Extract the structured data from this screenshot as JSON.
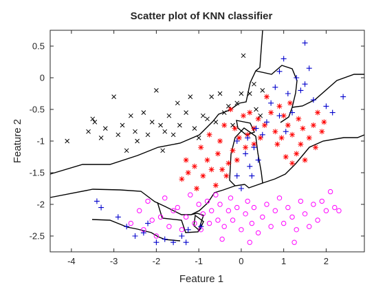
{
  "chart_data": {
    "type": "scatter",
    "title": "Scatter plot of KNN classifier",
    "xlabel": "Feature 1",
    "ylabel": "Feature 2",
    "xlim": [
      -4.5,
      2.9
    ],
    "ylim": [
      -2.75,
      0.75
    ],
    "x_ticks": [
      -4,
      -3,
      -2,
      -1,
      0,
      1,
      2
    ],
    "x_tick_labels": [
      "-4",
      "-3",
      "-2",
      "-1",
      "0",
      "1",
      "2"
    ],
    "y_ticks": [
      0.5,
      0,
      -0.5,
      -1,
      -1.5,
      -2,
      -2.5
    ],
    "y_tick_labels": [
      "0.5",
      "0",
      "-0.5",
      "-1",
      "-1.5",
      "-2",
      "-2.5"
    ],
    "grid": false,
    "legend": "none",
    "series": [
      {
        "marker": "x",
        "color": "#000000",
        "points": [
          [
            -4.1,
            -1.0
          ],
          [
            -3.6,
            -0.85
          ],
          [
            -3.5,
            -0.65
          ],
          [
            -3.45,
            -0.7
          ],
          [
            -3.3,
            -0.95
          ],
          [
            -3.2,
            -0.8
          ],
          [
            -3.0,
            -0.3
          ],
          [
            -2.9,
            -0.9
          ],
          [
            -2.8,
            -0.75
          ],
          [
            -2.7,
            -1.15
          ],
          [
            -2.6,
            -0.6
          ],
          [
            -2.5,
            -0.85
          ],
          [
            -2.45,
            -1.0
          ],
          [
            -2.3,
            -0.55
          ],
          [
            -2.2,
            -0.9
          ],
          [
            -2.1,
            -0.7
          ],
          [
            -2.0,
            -0.2
          ],
          [
            -1.9,
            -0.75
          ],
          [
            -1.85,
            -1.15
          ],
          [
            -1.8,
            -0.85
          ],
          [
            -1.7,
            -0.6
          ],
          [
            -1.6,
            -0.9
          ],
          [
            -1.5,
            -0.4
          ],
          [
            -1.45,
            -0.75
          ],
          [
            -1.3,
            -0.55
          ],
          [
            -1.2,
            -0.3
          ],
          [
            -1.1,
            -0.8
          ],
          [
            -1.0,
            -0.95
          ],
          [
            -0.9,
            -0.6
          ],
          [
            -0.8,
            -0.65
          ],
          [
            -0.7,
            -0.3
          ],
          [
            -0.6,
            -0.7
          ],
          [
            -0.5,
            -0.25
          ],
          [
            -0.4,
            -0.55
          ],
          [
            -0.3,
            -0.45
          ],
          [
            -0.2,
            -0.75
          ],
          [
            -0.1,
            -0.4
          ],
          [
            0.0,
            -0.25
          ],
          [
            0.05,
            0.35
          ],
          [
            0.2,
            -0.25
          ],
          [
            0.3,
            -0.1
          ],
          [
            0.35,
            -0.5
          ],
          [
            0.45,
            -0.6
          ],
          [
            0.5,
            -0.2
          ]
        ]
      },
      {
        "marker": "*",
        "color": "#ff0000",
        "points": [
          [
            -1.4,
            -1.6
          ],
          [
            -1.3,
            -1.3
          ],
          [
            -1.25,
            -1.5
          ],
          [
            -1.1,
            -1.4
          ],
          [
            -1.05,
            -1.75
          ],
          [
            -0.95,
            -1.1
          ],
          [
            -0.9,
            -1.55
          ],
          [
            -0.8,
            -1.3
          ],
          [
            -0.75,
            -0.9
          ],
          [
            -0.7,
            -1.45
          ],
          [
            -0.6,
            -1.7
          ],
          [
            -0.55,
            -1.2
          ],
          [
            -0.5,
            -1.0
          ],
          [
            -0.4,
            -0.75
          ],
          [
            -0.35,
            -1.55
          ],
          [
            -0.3,
            -1.35
          ],
          [
            -0.25,
            -0.5
          ],
          [
            -0.2,
            -1.15
          ],
          [
            -0.15,
            -0.8
          ],
          [
            -0.1,
            -1.3
          ],
          [
            -0.05,
            -0.95
          ],
          [
            0.05,
            -0.6
          ],
          [
            0.1,
            -1.1
          ],
          [
            0.15,
            -0.9
          ],
          [
            0.2,
            -0.55
          ],
          [
            0.3,
            -1.05
          ],
          [
            0.4,
            -0.65
          ],
          [
            0.45,
            -0.95
          ],
          [
            0.55,
            -0.75
          ],
          [
            0.6,
            -0.3
          ],
          [
            0.7,
            -0.55
          ],
          [
            0.8,
            -0.85
          ],
          [
            0.85,
            -1.05
          ],
          [
            0.9,
            -0.45
          ],
          [
            0.95,
            -0.95
          ],
          [
            1.0,
            -0.6
          ],
          [
            1.05,
            -1.25
          ],
          [
            1.1,
            -0.75
          ],
          [
            1.15,
            -0.4
          ],
          [
            1.2,
            -0.9
          ],
          [
            1.3,
            -1.2
          ],
          [
            1.35,
            -0.65
          ],
          [
            1.4,
            -1.05
          ],
          [
            1.45,
            -0.8
          ],
          [
            1.5,
            -1.3
          ],
          [
            1.6,
            -0.95
          ],
          [
            1.7,
            -0.75
          ],
          [
            1.75,
            -1.1
          ],
          [
            1.8,
            -0.55
          ],
          [
            1.9,
            -0.85
          ],
          [
            1.95,
            -0.7
          ],
          [
            1.2,
            -1.35
          ],
          [
            0.3,
            -0.8
          ],
          [
            -0.45,
            -1.45
          ]
        ]
      },
      {
        "marker": "o",
        "color": "#ff00ff",
        "points": [
          [
            -2.6,
            -2.3
          ],
          [
            -2.4,
            -2.1
          ],
          [
            -2.3,
            -2.4
          ],
          [
            -2.2,
            -1.95
          ],
          [
            -2.1,
            -2.25
          ],
          [
            -2.0,
            -2.5
          ],
          [
            -1.9,
            -2.2
          ],
          [
            -1.8,
            -1.9
          ],
          [
            -1.7,
            -2.35
          ],
          [
            -1.6,
            -2.1
          ],
          [
            -1.5,
            -2.05
          ],
          [
            -1.4,
            -2.4
          ],
          [
            -1.3,
            -2.2
          ],
          [
            -1.2,
            -1.85
          ],
          [
            -1.1,
            -2.3
          ],
          [
            -1.0,
            -2.0
          ],
          [
            -0.95,
            -2.4
          ],
          [
            -0.9,
            -2.15
          ],
          [
            -0.8,
            -1.95
          ],
          [
            -0.75,
            -2.3
          ],
          [
            -0.7,
            -2.1
          ],
          [
            -0.6,
            -1.85
          ],
          [
            -0.55,
            -2.25
          ],
          [
            -0.5,
            -2.0
          ],
          [
            -0.4,
            -2.35
          ],
          [
            -0.3,
            -2.1
          ],
          [
            -0.25,
            -1.9
          ],
          [
            -0.2,
            -2.25
          ],
          [
            -0.1,
            -2.05
          ],
          [
            0.0,
            -2.4
          ],
          [
            0.1,
            -2.15
          ],
          [
            0.15,
            -1.95
          ],
          [
            0.25,
            -2.3
          ],
          [
            0.3,
            -2.05
          ],
          [
            0.4,
            -2.45
          ],
          [
            0.5,
            -2.2
          ],
          [
            0.6,
            -2.0
          ],
          [
            0.7,
            -2.35
          ],
          [
            0.8,
            -2.1
          ],
          [
            0.9,
            -1.9
          ],
          [
            1.0,
            -2.3
          ],
          [
            1.1,
            -2.05
          ],
          [
            1.2,
            -2.2
          ],
          [
            1.3,
            -2.4
          ],
          [
            1.4,
            -1.95
          ],
          [
            1.5,
            -2.15
          ],
          [
            1.6,
            -2.35
          ],
          [
            1.7,
            -2.0
          ],
          [
            1.8,
            -2.25
          ],
          [
            1.9,
            -1.95
          ],
          [
            2.0,
            -2.1
          ],
          [
            2.1,
            -1.8
          ],
          [
            2.2,
            -2.05
          ],
          [
            2.3,
            -2.1
          ],
          [
            0.2,
            -2.6
          ],
          [
            -0.45,
            -2.55
          ],
          [
            1.25,
            -2.6
          ]
        ]
      },
      {
        "marker": "+",
        "color": "#0000cc",
        "points": [
          [
            -3.4,
            -1.95
          ],
          [
            -3.3,
            -2.05
          ],
          [
            -2.9,
            -2.2
          ],
          [
            -2.7,
            -2.35
          ],
          [
            -2.5,
            -2.5
          ],
          [
            -2.3,
            -2.45
          ],
          [
            -2.2,
            -2.3
          ],
          [
            -2.0,
            -2.6
          ],
          [
            -1.8,
            -2.55
          ],
          [
            -1.6,
            -2.6
          ],
          [
            -1.4,
            -2.5
          ],
          [
            -1.3,
            -2.6
          ],
          [
            -1.25,
            -2.4
          ],
          [
            -0.95,
            -2.35
          ],
          [
            -0.1,
            -1.55
          ],
          [
            0.0,
            -1.75
          ],
          [
            0.1,
            -1.2
          ],
          [
            0.15,
            -0.95
          ],
          [
            0.2,
            -1.4
          ],
          [
            0.3,
            -1.1
          ],
          [
            0.35,
            -0.8
          ],
          [
            0.4,
            -1.3
          ],
          [
            0.5,
            -0.9
          ],
          [
            0.6,
            -0.7
          ],
          [
            0.7,
            -0.4
          ],
          [
            0.8,
            -0.15
          ],
          [
            0.9,
            0.1
          ],
          [
            1.0,
            0.3
          ],
          [
            1.1,
            -0.25
          ],
          [
            1.2,
            -0.55
          ],
          [
            1.3,
            0.0
          ],
          [
            1.4,
            -0.2
          ],
          [
            1.5,
            0.55
          ],
          [
            1.6,
            0.15
          ],
          [
            1.7,
            -0.35
          ],
          [
            1.5,
            -0.1
          ],
          [
            0.9,
            -0.6
          ],
          [
            1.05,
            -0.85
          ],
          [
            0.25,
            -1.55
          ],
          [
            -0.1,
            -1.0
          ],
          [
            2.0,
            -0.45
          ],
          [
            2.15,
            -0.55
          ],
          [
            2.4,
            -0.3
          ]
        ]
      }
    ]
  }
}
